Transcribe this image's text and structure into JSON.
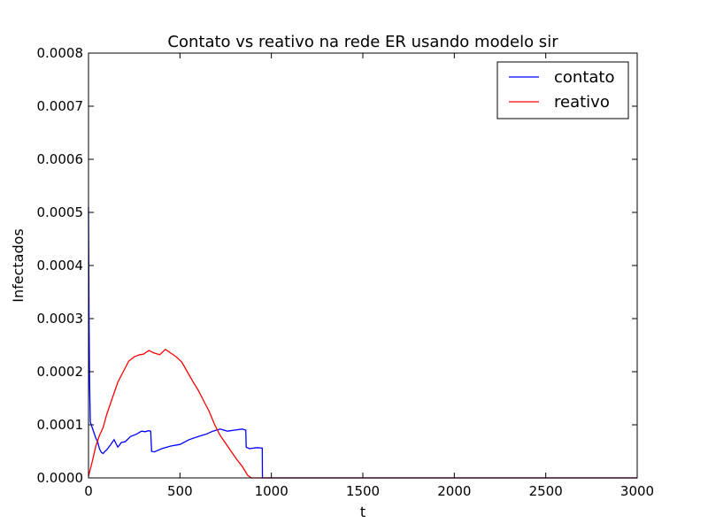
{
  "chart_data": {
    "type": "line",
    "title": "Contato vs reativo na rede ER usando modelo sir",
    "xlabel": "t",
    "ylabel": "Infectados",
    "xlim": [
      0,
      3000
    ],
    "ylim": [
      0,
      0.0008
    ],
    "xticks": [
      "0",
      "500",
      "1000",
      "1500",
      "2000",
      "2500",
      "3000"
    ],
    "yticks": [
      "0.0000",
      "0.0001",
      "0.0002",
      "0.0003",
      "0.0004",
      "0.0005",
      "0.0006",
      "0.0007",
      "0.0008"
    ],
    "grid": false,
    "legend_position": "top-right",
    "series": [
      {
        "name": "contato",
        "color": "#0000ff",
        "x": [
          0,
          3,
          6,
          10,
          15,
          20,
          30,
          40,
          50,
          60,
          70,
          80,
          90,
          100,
          120,
          140,
          150,
          160,
          170,
          180,
          200,
          230,
          260,
          290,
          310,
          330,
          340,
          345,
          360,
          400,
          450,
          500,
          550,
          600,
          640,
          680,
          720,
          760,
          800,
          840,
          860,
          862,
          880,
          920,
          950,
          951,
          1000,
          1500,
          2000,
          2500,
          3000
        ],
        "y": [
          0.00051,
          0.0003,
          0.00018,
          0.000105,
          0.0001,
          9.5e-05,
          8.5e-05,
          7.5e-05,
          6.8e-05,
          5.5e-05,
          4.8e-05,
          4.6e-05,
          5e-05,
          5.3e-05,
          6.2e-05,
          7.2e-05,
          6.5e-05,
          5.8e-05,
          6.2e-05,
          6.7e-05,
          6.8e-05,
          7.8e-05,
          8.2e-05,
          8.8e-05,
          8.7e-05,
          8.9e-05,
          8.8e-05,
          5e-05,
          4.9e-05,
          5.5e-05,
          6e-05,
          6.3e-05,
          7.2e-05,
          7.8e-05,
          8.2e-05,
          8.8e-05,
          9.2e-05,
          8.8e-05,
          9e-05,
          9.2e-05,
          9e-05,
          5.8e-05,
          5.5e-05,
          5.7e-05,
          5.6e-05,
          0,
          0,
          0,
          0,
          0,
          0
        ]
      },
      {
        "name": "reativo",
        "color": "#ff0000",
        "x": [
          0,
          20,
          40,
          60,
          80,
          100,
          130,
          160,
          190,
          220,
          250,
          280,
          300,
          330,
          360,
          390,
          420,
          430,
          450,
          480,
          510,
          540,
          570,
          600,
          630,
          660,
          690,
          720,
          750,
          780,
          810,
          840,
          870,
          890,
          900,
          1000,
          1500,
          2000,
          2500,
          3000
        ],
        "y": [
          3e-06,
          3e-05,
          6e-05,
          8e-05,
          9.5e-05,
          0.00012,
          0.00015,
          0.00018,
          0.0002,
          0.00022,
          0.000228,
          0.000232,
          0.000233,
          0.00024,
          0.000235,
          0.000232,
          0.000242,
          0.00024,
          0.000235,
          0.000228,
          0.000218,
          0.0002,
          0.000182,
          0.000165,
          0.000145,
          0.000125,
          0.0001,
          8e-05,
          6.5e-05,
          5e-05,
          3.5e-05,
          2.2e-05,
          5e-06,
          0,
          0,
          0,
          0,
          0,
          0,
          0
        ]
      }
    ]
  }
}
